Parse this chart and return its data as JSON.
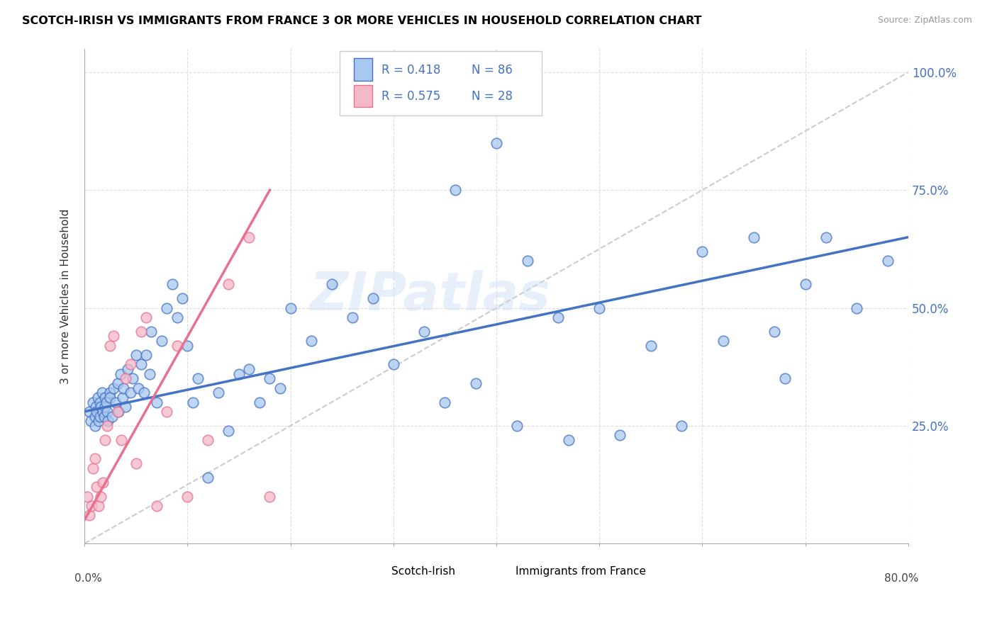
{
  "title": "SCOTCH-IRISH VS IMMIGRANTS FROM FRANCE 3 OR MORE VEHICLES IN HOUSEHOLD CORRELATION CHART",
  "source": "Source: ZipAtlas.com",
  "ylabel": "3 or more Vehicles in Household",
  "legend_label_blue": "Scotch-Irish",
  "legend_label_pink": "Immigrants from France",
  "blue_color": "#a8c8f0",
  "pink_color": "#f4b8c8",
  "trend_blue": "#4472c4",
  "trend_pink": "#e87090",
  "watermark": "ZIPatlas",
  "blue_scatter_x": [
    0.5,
    0.6,
    0.8,
    1.0,
    1.0,
    1.1,
    1.2,
    1.3,
    1.4,
    1.5,
    1.5,
    1.6,
    1.7,
    1.8,
    1.9,
    2.0,
    2.0,
    2.1,
    2.2,
    2.3,
    2.5,
    2.5,
    2.7,
    2.8,
    3.0,
    3.2,
    3.3,
    3.5,
    3.7,
    3.8,
    4.0,
    4.2,
    4.5,
    4.7,
    5.0,
    5.2,
    5.5,
    5.8,
    6.0,
    6.3,
    6.5,
    7.0,
    7.5,
    8.0,
    8.5,
    9.0,
    9.5,
    10.0,
    10.5,
    11.0,
    12.0,
    13.0,
    14.0,
    15.0,
    16.0,
    17.0,
    18.0,
    19.0,
    20.0,
    22.0,
    24.0,
    26.0,
    28.0,
    30.0,
    33.0,
    36.0,
    40.0,
    43.0,
    46.0,
    50.0,
    55.0,
    60.0,
    65.0,
    67.0,
    70.0,
    72.0,
    75.0,
    78.0,
    35.0,
    38.0,
    42.0,
    47.0,
    52.0,
    58.0,
    62.0,
    68.0
  ],
  "blue_scatter_y": [
    28.0,
    26.0,
    30.0,
    27.0,
    25.0,
    29.0,
    28.0,
    31.0,
    26.0,
    30.0,
    27.0,
    29.0,
    32.0,
    28.0,
    27.0,
    31.0,
    29.0,
    30.0,
    28.0,
    26.0,
    32.0,
    31.0,
    27.0,
    33.0,
    30.0,
    34.0,
    28.0,
    36.0,
    31.0,
    33.0,
    29.0,
    37.0,
    32.0,
    35.0,
    40.0,
    33.0,
    38.0,
    32.0,
    40.0,
    36.0,
    45.0,
    30.0,
    43.0,
    50.0,
    55.0,
    48.0,
    52.0,
    42.0,
    30.0,
    35.0,
    14.0,
    32.0,
    24.0,
    36.0,
    37.0,
    30.0,
    35.0,
    33.0,
    50.0,
    43.0,
    55.0,
    48.0,
    52.0,
    38.0,
    45.0,
    75.0,
    85.0,
    60.0,
    48.0,
    50.0,
    42.0,
    62.0,
    65.0,
    45.0,
    55.0,
    65.0,
    50.0,
    60.0,
    30.0,
    34.0,
    25.0,
    22.0,
    23.0,
    25.0,
    43.0,
    35.0
  ],
  "pink_scatter_x": [
    0.3,
    0.5,
    0.7,
    0.8,
    1.0,
    1.2,
    1.4,
    1.6,
    1.8,
    2.0,
    2.2,
    2.5,
    2.8,
    3.2,
    3.6,
    4.0,
    4.5,
    5.0,
    5.5,
    6.0,
    7.0,
    8.0,
    9.0,
    10.0,
    12.0,
    14.0,
    16.0,
    18.0
  ],
  "pink_scatter_y": [
    10.0,
    6.0,
    8.0,
    16.0,
    18.0,
    12.0,
    8.0,
    10.0,
    13.0,
    22.0,
    25.0,
    42.0,
    44.0,
    28.0,
    22.0,
    35.0,
    38.0,
    17.0,
    45.0,
    48.0,
    8.0,
    28.0,
    42.0,
    10.0,
    22.0,
    55.0,
    65.0,
    10.0
  ],
  "xmin": 0.0,
  "xmax": 80.0,
  "ymin": 0.0,
  "ymax": 105.0,
  "ytick_vals": [
    0,
    25,
    50,
    75,
    100
  ],
  "ytick_labels": [
    "",
    "25.0%",
    "50.0%",
    "75.0%",
    "100.0%"
  ],
  "blue_trend_x0": 0.0,
  "blue_trend_y0": 28.0,
  "blue_trend_x1": 80.0,
  "blue_trend_y1": 65.0,
  "pink_trend_x0": 0.0,
  "pink_trend_y0": 5.0,
  "pink_trend_x1": 18.0,
  "pink_trend_y1": 75.0
}
